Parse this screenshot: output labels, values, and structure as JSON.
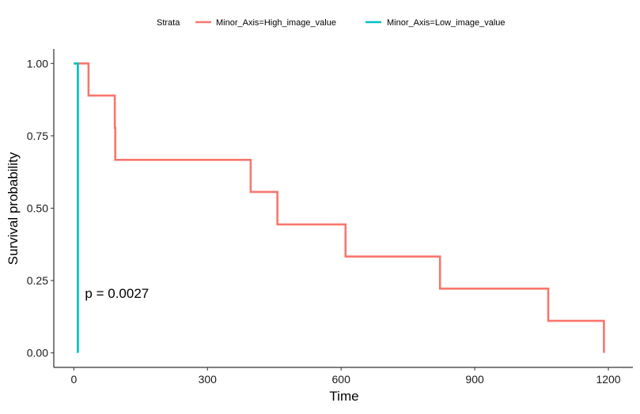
{
  "chart_data": {
    "type": "line",
    "step": true,
    "xlabel": "Time",
    "ylabel": "Survival probability",
    "xlim": [
      -45,
      1255
    ],
    "ylim": [
      -0.05,
      1.05
    ],
    "x_ticks": [
      0,
      300,
      600,
      900,
      1200
    ],
    "x_tick_labels": [
      "0",
      "300",
      "600",
      "900",
      "1200"
    ],
    "y_ticks": [
      0,
      0.25,
      0.5,
      0.75,
      1.0
    ],
    "y_tick_labels": [
      "0.00",
      "0.25",
      "0.50",
      "0.75",
      "1.00"
    ],
    "grid": false,
    "legend": {
      "title": "Strata",
      "placement": "top",
      "entries": [
        "Minor_Axis=High_image_value",
        "Minor_Axis=Low_image_value"
      ]
    },
    "annotation": "p = 0.0027",
    "annotation_at": [
      25,
      0.19
    ],
    "series": [
      {
        "name": "Minor_Axis=High_image_value",
        "color": "#F8766D",
        "x": [
          0,
          33,
          92,
          93,
          397,
          457,
          610,
          822,
          1065,
          1190
        ],
        "y": [
          1.0,
          0.889,
          0.778,
          0.667,
          0.556,
          0.444,
          0.333,
          0.222,
          0.111,
          0.0
        ]
      },
      {
        "name": "Minor_Axis=Low_image_value",
        "color": "#00BFC4",
        "x": [
          0,
          9
        ],
        "y": [
          1.0,
          0.0
        ]
      }
    ]
  }
}
